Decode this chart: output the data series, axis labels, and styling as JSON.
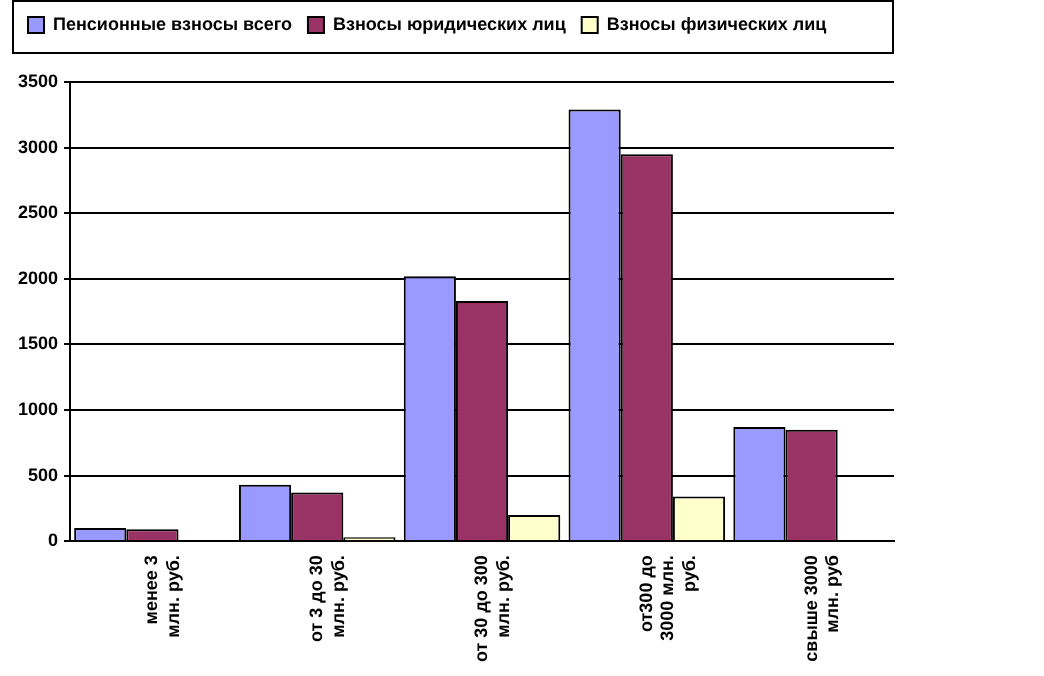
{
  "chart_data": {
    "type": "bar",
    "categories": [
      "менее 3\nмлн. руб.",
      "от 3 до 30\nмлн. руб.",
      "от 30 до 300\nмлн. руб.",
      "от300 до\n3000 млн.\nруб.",
      "свыше 3000\nмлн. руб"
    ],
    "series": [
      {
        "name": "Пенсионные взносы всего",
        "color": "#9999ff",
        "values": [
          100,
          430,
          2020,
          3290,
          870
        ]
      },
      {
        "name": "Взносы юридических лиц",
        "color": "#993366",
        "values": [
          90,
          370,
          1830,
          2950,
          850
        ]
      },
      {
        "name": "Взносы физических лиц",
        "color": "#ffffcc",
        "values": [
          0,
          30,
          200,
          340,
          0
        ]
      }
    ],
    "ylim": [
      0,
      3500
    ],
    "yticks": [
      0,
      500,
      1000,
      1500,
      2000,
      2500,
      3000,
      3500
    ],
    "grid": "y",
    "legend": "top"
  }
}
